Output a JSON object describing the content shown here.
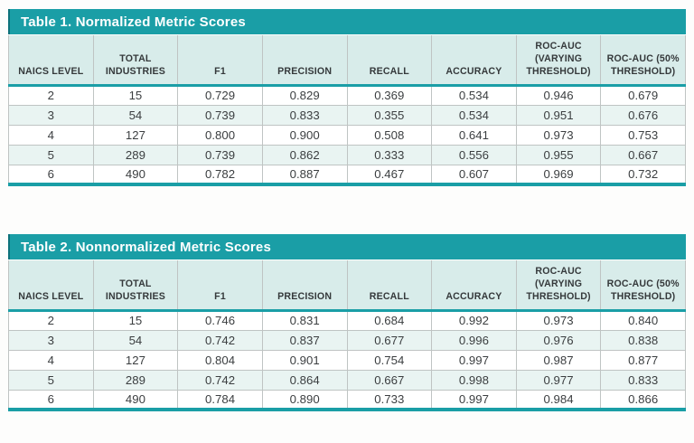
{
  "colors": {
    "teal": "#1a9ea6",
    "teal_dark": "#0d717a",
    "header_bg": "#d8ecea",
    "alt_row_bg": "#e9f4f2",
    "border_gray": "#bfc4c3",
    "text": "#3b3e40",
    "title_text": "#ffffff",
    "page_bg": "#fdfdfc"
  },
  "tables": [
    {
      "title": "Table 1. Normalized Metric Scores",
      "columns": [
        "NAICS LEVEL",
        "TOTAL INDUSTRIES",
        "F1",
        "PRECISION",
        "RECALL",
        "ACCURACY",
        "ROC-AUC (VARYING THRESHOLD)",
        "ROC-AUC (50% THRESHOLD)"
      ],
      "rows": [
        [
          "2",
          "15",
          "0.729",
          "0.829",
          "0.369",
          "0.534",
          "0.946",
          "0.679"
        ],
        [
          "3",
          "54",
          "0.739",
          "0.833",
          "0.355",
          "0.534",
          "0.951",
          "0.676"
        ],
        [
          "4",
          "127",
          "0.800",
          "0.900",
          "0.508",
          "0.641",
          "0.973",
          "0.753"
        ],
        [
          "5",
          "289",
          "0.739",
          "0.862",
          "0.333",
          "0.556",
          "0.955",
          "0.667"
        ],
        [
          "6",
          "490",
          "0.782",
          "0.887",
          "0.467",
          "0.607",
          "0.969",
          "0.732"
        ]
      ]
    },
    {
      "title": "Table 2. Nonnormalized Metric Scores",
      "columns": [
        "NAICS LEVEL",
        "TOTAL INDUSTRIES",
        "F1",
        "PRECISION",
        "RECALL",
        "ACCURACY",
        "ROC-AUC (VARYING THRESHOLD)",
        "ROC-AUC (50% THRESHOLD)"
      ],
      "rows": [
        [
          "2",
          "15",
          "0.746",
          "0.831",
          "0.684",
          "0.992",
          "0.973",
          "0.840"
        ],
        [
          "3",
          "54",
          "0.742",
          "0.837",
          "0.677",
          "0.996",
          "0.976",
          "0.838"
        ],
        [
          "4",
          "127",
          "0.804",
          "0.901",
          "0.754",
          "0.997",
          "0.987",
          "0.877"
        ],
        [
          "5",
          "289",
          "0.742",
          "0.864",
          "0.667",
          "0.998",
          "0.977",
          "0.833"
        ],
        [
          "6",
          "490",
          "0.784",
          "0.890",
          "0.733",
          "0.997",
          "0.984",
          "0.866"
        ]
      ]
    }
  ],
  "chart_data": [
    {
      "type": "table",
      "title": "Table 1. Normalized Metric Scores",
      "columns": [
        "NAICS LEVEL",
        "TOTAL INDUSTRIES",
        "F1",
        "PRECISION",
        "RECALL",
        "ACCURACY",
        "ROC-AUC (VARYING THRESHOLD)",
        "ROC-AUC (50% THRESHOLD)"
      ],
      "rows": [
        [
          2,
          15,
          0.729,
          0.829,
          0.369,
          0.534,
          0.946,
          0.679
        ],
        [
          3,
          54,
          0.739,
          0.833,
          0.355,
          0.534,
          0.951,
          0.676
        ],
        [
          4,
          127,
          0.8,
          0.9,
          0.508,
          0.641,
          0.973,
          0.753
        ],
        [
          5,
          289,
          0.739,
          0.862,
          0.333,
          0.556,
          0.955,
          0.667
        ],
        [
          6,
          490,
          0.782,
          0.887,
          0.467,
          0.607,
          0.969,
          0.732
        ]
      ]
    },
    {
      "type": "table",
      "title": "Table 2. Nonnormalized Metric Scores",
      "columns": [
        "NAICS LEVEL",
        "TOTAL INDUSTRIES",
        "F1",
        "PRECISION",
        "RECALL",
        "ACCURACY",
        "ROC-AUC (VARYING THRESHOLD)",
        "ROC-AUC (50% THRESHOLD)"
      ],
      "rows": [
        [
          2,
          15,
          0.746,
          0.831,
          0.684,
          0.992,
          0.973,
          0.84
        ],
        [
          3,
          54,
          0.742,
          0.837,
          0.677,
          0.996,
          0.976,
          0.838
        ],
        [
          4,
          127,
          0.804,
          0.901,
          0.754,
          0.997,
          0.987,
          0.877
        ],
        [
          5,
          289,
          0.742,
          0.864,
          0.667,
          0.998,
          0.977,
          0.833
        ],
        [
          6,
          490,
          0.784,
          0.89,
          0.733,
          0.997,
          0.984,
          0.866
        ]
      ]
    }
  ]
}
